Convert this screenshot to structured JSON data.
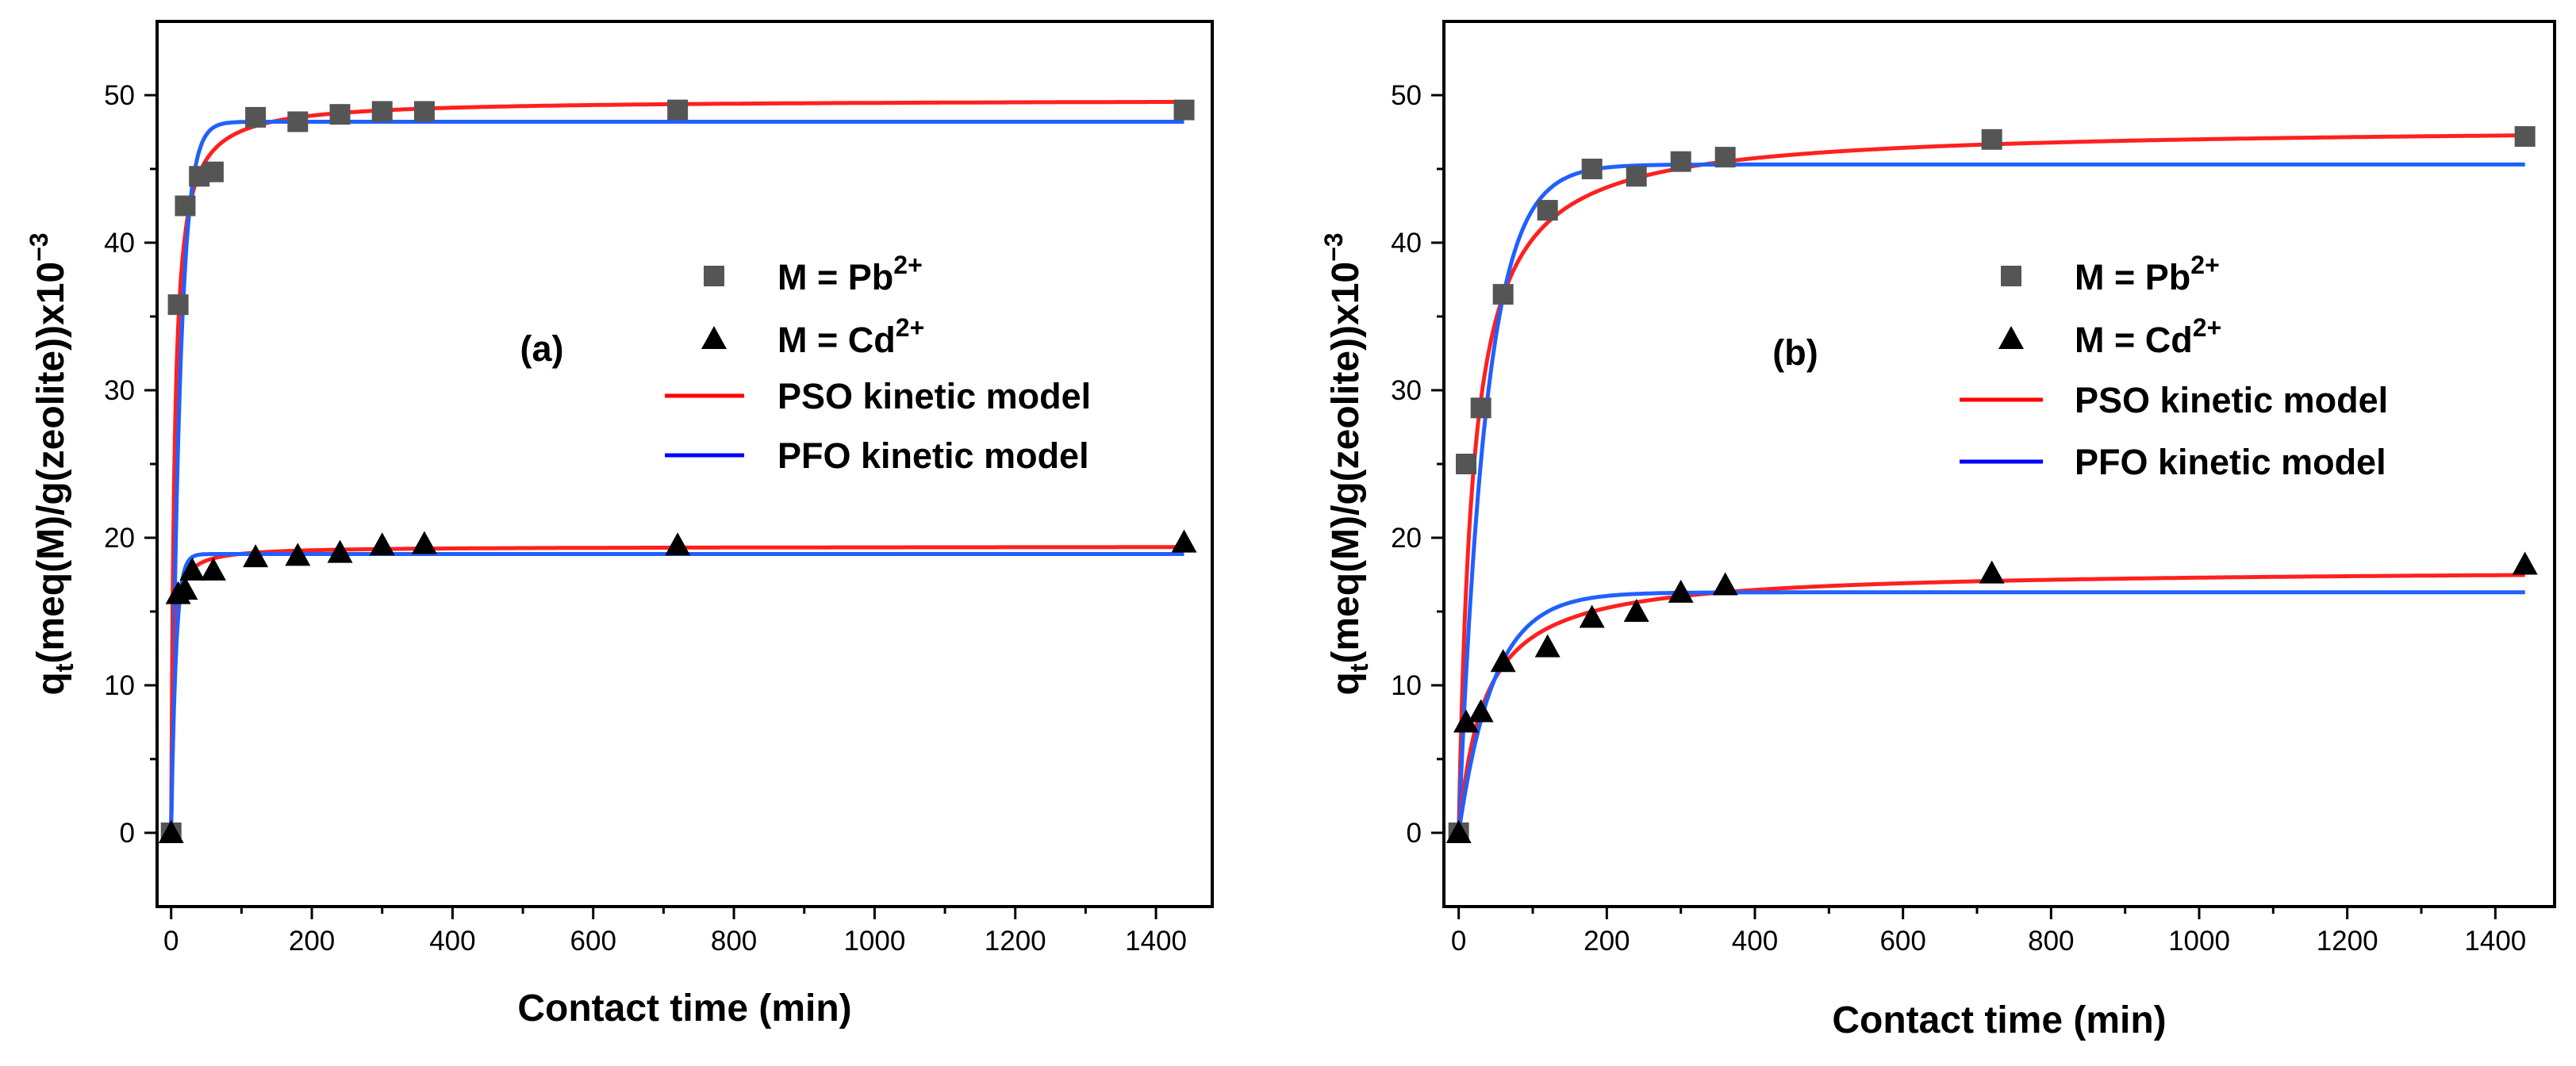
{
  "chart_data": [
    {
      "type": "scatter",
      "panel_label": "(a)",
      "xlabel": "Contact time (min)",
      "ylabel": {
        "base": "q",
        "sub": "t",
        "rest": "(meq(M)/g(zeolite))x10",
        "sup": "−3"
      },
      "xlim": [
        -20,
        1480
      ],
      "ylim": [
        -5,
        55
      ],
      "xticks": [
        0,
        200,
        400,
        600,
        800,
        1000,
        1200,
        1400
      ],
      "yticks": [
        0,
        10,
        20,
        30,
        40,
        50
      ],
      "legend_position": "center-right",
      "series": [
        {
          "key": "pb",
          "name": "M = Pb",
          "sup": "2+",
          "marker": "square",
          "color": "#555555",
          "points": [
            [
              0,
              0
            ],
            [
              10,
              35.8
            ],
            [
              20,
              42.5
            ],
            [
              40,
              44.5
            ],
            [
              60,
              44.8
            ],
            [
              120,
              48.5
            ],
            [
              180,
              48.2
            ],
            [
              240,
              48.7
            ],
            [
              300,
              48.9
            ],
            [
              360,
              48.9
            ],
            [
              720,
              49.0
            ],
            [
              1440,
              49.0
            ]
          ]
        },
        {
          "key": "cd",
          "name": "M = Cd",
          "sup": "2+",
          "marker": "triangle",
          "color": "#000000",
          "points": [
            [
              0,
              0
            ],
            [
              10,
              16.2
            ],
            [
              20,
              16.5
            ],
            [
              30,
              17.8
            ],
            [
              60,
              17.8
            ],
            [
              120,
              18.7
            ],
            [
              180,
              18.8
            ],
            [
              240,
              19.0
            ],
            [
              300,
              19.5
            ],
            [
              360,
              19.6
            ],
            [
              720,
              19.5
            ],
            [
              1440,
              19.7
            ]
          ]
        },
        {
          "key": "pso",
          "name": "PSO kinetic model",
          "line": true,
          "color": "#ff0000"
        },
        {
          "key": "pfo",
          "name": "PFO kinetic model",
          "line": true,
          "color": "#0000ff"
        }
      ],
      "curves": [
        {
          "model": "pso",
          "color": "#ff2020",
          "qe": 49.7,
          "k": 0.0045
        },
        {
          "model": "pfo",
          "color": "#2060ff",
          "qe": 48.2,
          "k": 0.08
        },
        {
          "model": "pso",
          "color": "#ff2020",
          "qe": 19.4,
          "k": 0.02
        },
        {
          "model": "pfo",
          "color": "#2060ff",
          "qe": 18.9,
          "k": 0.15
        }
      ]
    },
    {
      "type": "scatter",
      "panel_label": "(b)",
      "xlabel": "Contact time (min)",
      "ylabel": {
        "base": "q",
        "sub": "t",
        "rest": "(meq(M)/g(zeolite))x10",
        "sup": "−3"
      },
      "xlim": [
        -20,
        1480
      ],
      "ylim": [
        -5,
        55
      ],
      "xticks": [
        0,
        200,
        400,
        600,
        800,
        1000,
        1200,
        1400
      ],
      "yticks": [
        0,
        10,
        20,
        30,
        40,
        50
      ],
      "legend_position": "center-right",
      "series": [
        {
          "key": "pb",
          "name": "M = Pb",
          "sup": "2+",
          "marker": "square",
          "color": "#555555",
          "points": [
            [
              0,
              0
            ],
            [
              10,
              25.0
            ],
            [
              30,
              28.8
            ],
            [
              60,
              36.5
            ],
            [
              120,
              42.2
            ],
            [
              180,
              45.0
            ],
            [
              240,
              44.5
            ],
            [
              300,
              45.5
            ],
            [
              360,
              45.8
            ],
            [
              720,
              47.0
            ],
            [
              1440,
              47.2
            ]
          ]
        },
        {
          "key": "cd",
          "name": "M = Cd",
          "sup": "2+",
          "marker": "triangle",
          "color": "#000000",
          "points": [
            [
              0,
              0
            ],
            [
              10,
              7.5
            ],
            [
              30,
              8.2
            ],
            [
              60,
              11.6
            ],
            [
              120,
              12.6
            ],
            [
              180,
              14.6
            ],
            [
              240,
              15.0
            ],
            [
              300,
              16.3
            ],
            [
              360,
              16.8
            ],
            [
              720,
              17.6
            ],
            [
              1440,
              18.2
            ]
          ]
        },
        {
          "key": "pso",
          "name": "PSO kinetic model",
          "line": true,
          "color": "#ff0000"
        },
        {
          "key": "pfo",
          "name": "PFO kinetic model",
          "line": true,
          "color": "#0000ff"
        }
      ],
      "curves": [
        {
          "model": "pso",
          "color": "#ff2020",
          "qe": 47.9,
          "k": 0.0011
        },
        {
          "model": "pfo",
          "color": "#2060ff",
          "qe": 45.3,
          "k": 0.027
        },
        {
          "model": "pso",
          "color": "#ff2020",
          "qe": 17.9,
          "k": 0.0016
        },
        {
          "model": "pfo",
          "color": "#2060ff",
          "qe": 16.3,
          "k": 0.021
        }
      ]
    }
  ]
}
